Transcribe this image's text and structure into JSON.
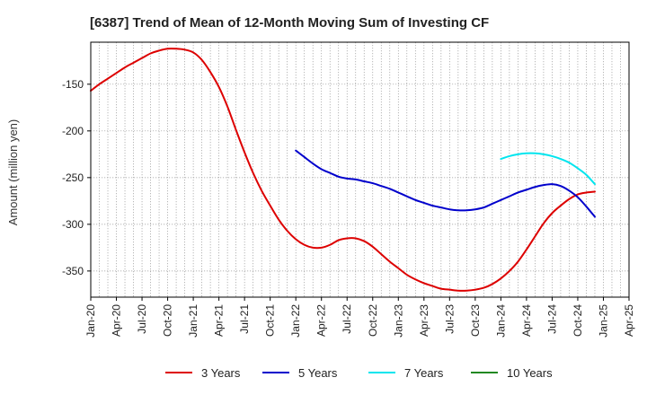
{
  "chart_data": {
    "type": "line",
    "title": "[6387]  Trend of Mean of 12-Month Moving Sum of Investing CF",
    "ylabel": "Amount (million yen)",
    "xlabel": "",
    "x_ticks": [
      "Jan-20",
      "Apr-20",
      "Jul-20",
      "Oct-20",
      "Jan-21",
      "Apr-21",
      "Jul-21",
      "Oct-21",
      "Jan-22",
      "Apr-22",
      "Jul-22",
      "Oct-22",
      "Jan-23",
      "Apr-23",
      "Jul-23",
      "Oct-23",
      "Jan-24",
      "Apr-24",
      "Jul-24",
      "Oct-24",
      "Jan-25",
      "Apr-25"
    ],
    "xlim": [
      "2020-01",
      "2025-04"
    ],
    "y_ticks": [
      -150,
      -200,
      -250,
      -300,
      -350
    ],
    "ylim": [
      -378,
      -105
    ],
    "grid": true,
    "legend_position": "bottom",
    "series": [
      {
        "name": "3 Years",
        "color": "#dd0000",
        "points": [
          [
            "2020-01",
            -157
          ],
          [
            "2020-02",
            -150
          ],
          [
            "2020-03",
            -144
          ],
          [
            "2020-04",
            -138
          ],
          [
            "2020-05",
            -132
          ],
          [
            "2020-06",
            -127
          ],
          [
            "2020-07",
            -122
          ],
          [
            "2020-08",
            -117
          ],
          [
            "2020-09",
            -114
          ],
          [
            "2020-10",
            -112
          ],
          [
            "2020-11",
            -112
          ],
          [
            "2020-12",
            -113
          ],
          [
            "2021-01",
            -116
          ],
          [
            "2021-02",
            -124
          ],
          [
            "2021-03",
            -137
          ],
          [
            "2021-04",
            -153
          ],
          [
            "2021-05",
            -174
          ],
          [
            "2021-06",
            -199
          ],
          [
            "2021-07",
            -223
          ],
          [
            "2021-08",
            -245
          ],
          [
            "2021-09",
            -264
          ],
          [
            "2021-10",
            -280
          ],
          [
            "2021-11",
            -295
          ],
          [
            "2021-12",
            -307
          ],
          [
            "2022-01",
            -316
          ],
          [
            "2022-02",
            -322
          ],
          [
            "2022-03",
            -325
          ],
          [
            "2022-04",
            -325
          ],
          [
            "2022-05",
            -322
          ],
          [
            "2022-06",
            -317
          ],
          [
            "2022-07",
            -315
          ],
          [
            "2022-08",
            -315
          ],
          [
            "2022-09",
            -318
          ],
          [
            "2022-10",
            -324
          ],
          [
            "2022-11",
            -332
          ],
          [
            "2022-12",
            -340
          ],
          [
            "2023-01",
            -347
          ],
          [
            "2023-02",
            -354
          ],
          [
            "2023-03",
            -359
          ],
          [
            "2023-04",
            -363
          ],
          [
            "2023-05",
            -366
          ],
          [
            "2023-06",
            -369
          ],
          [
            "2023-07",
            -370
          ],
          [
            "2023-08",
            -371
          ],
          [
            "2023-09",
            -371
          ],
          [
            "2023-10",
            -370
          ],
          [
            "2023-11",
            -368
          ],
          [
            "2023-12",
            -364
          ],
          [
            "2024-01",
            -358
          ],
          [
            "2024-02",
            -350
          ],
          [
            "2024-03",
            -340
          ],
          [
            "2024-04",
            -327
          ],
          [
            "2024-05",
            -313
          ],
          [
            "2024-06",
            -299
          ],
          [
            "2024-07",
            -288
          ],
          [
            "2024-08",
            -280
          ],
          [
            "2024-09",
            -273
          ],
          [
            "2024-10",
            -268
          ],
          [
            "2024-11",
            -266
          ],
          [
            "2024-12",
            -265
          ]
        ]
      },
      {
        "name": "5 Years",
        "color": "#0000cc",
        "points": [
          [
            "2022-01",
            -221
          ],
          [
            "2022-02",
            -228
          ],
          [
            "2022-03",
            -235
          ],
          [
            "2022-04",
            -241
          ],
          [
            "2022-05",
            -245
          ],
          [
            "2022-06",
            -249
          ],
          [
            "2022-07",
            -251
          ],
          [
            "2022-08",
            -252
          ],
          [
            "2022-09",
            -254
          ],
          [
            "2022-10",
            -256
          ],
          [
            "2022-11",
            -259
          ],
          [
            "2022-12",
            -262
          ],
          [
            "2023-01",
            -266
          ],
          [
            "2023-02",
            -270
          ],
          [
            "2023-03",
            -274
          ],
          [
            "2023-04",
            -277
          ],
          [
            "2023-05",
            -280
          ],
          [
            "2023-06",
            -282
          ],
          [
            "2023-07",
            -284
          ],
          [
            "2023-08",
            -285
          ],
          [
            "2023-09",
            -285
          ],
          [
            "2023-10",
            -284
          ],
          [
            "2023-11",
            -282
          ],
          [
            "2023-12",
            -278
          ],
          [
            "2024-01",
            -274
          ],
          [
            "2024-02",
            -270
          ],
          [
            "2024-03",
            -266
          ],
          [
            "2024-04",
            -263
          ],
          [
            "2024-05",
            -260
          ],
          [
            "2024-06",
            -258
          ],
          [
            "2024-07",
            -257
          ],
          [
            "2024-08",
            -259
          ],
          [
            "2024-09",
            -264
          ],
          [
            "2024-10",
            -271
          ],
          [
            "2024-11",
            -281
          ],
          [
            "2024-12",
            -292
          ]
        ]
      },
      {
        "name": "7 Years",
        "color": "#00e5ee",
        "points": [
          [
            "2024-01",
            -230
          ],
          [
            "2024-02",
            -227
          ],
          [
            "2024-03",
            -225
          ],
          [
            "2024-04",
            -224
          ],
          [
            "2024-05",
            -224
          ],
          [
            "2024-06",
            -225
          ],
          [
            "2024-07",
            -227
          ],
          [
            "2024-08",
            -230
          ],
          [
            "2024-09",
            -234
          ],
          [
            "2024-10",
            -240
          ],
          [
            "2024-11",
            -247
          ],
          [
            "2024-12",
            -257
          ]
        ]
      },
      {
        "name": "10 Years",
        "color": "#228822",
        "points": []
      }
    ]
  }
}
